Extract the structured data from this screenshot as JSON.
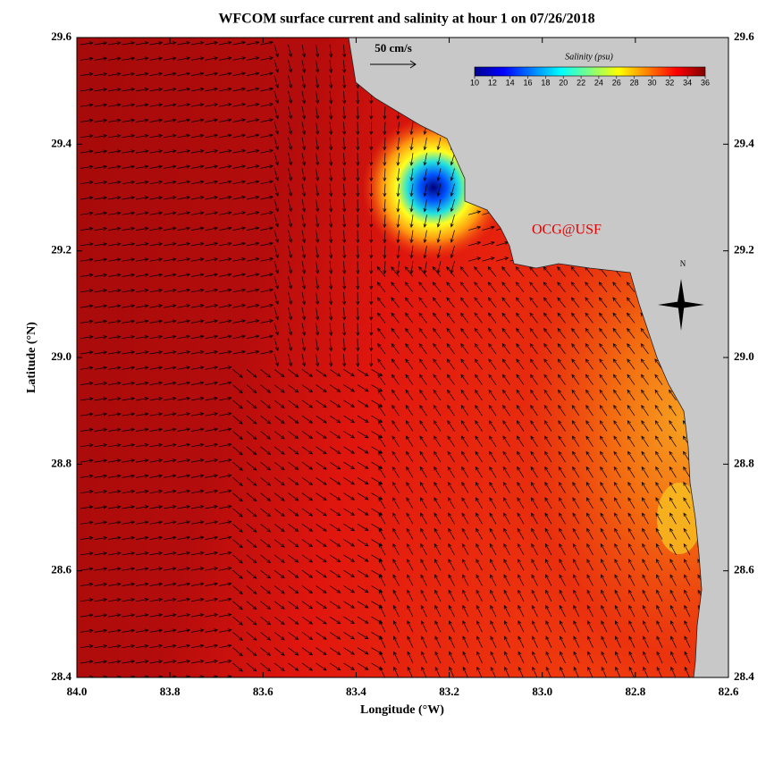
{
  "chart_data": {
    "type": "map",
    "title": "WFCOM surface current and salinity at hour 1 on 07/26/2018",
    "x_label": "Longitude (°W)",
    "y_label": "Latitude (°N)",
    "xlim": [
      84.0,
      82.6
    ],
    "xticks": [
      {
        "value": 84.0,
        "label": "84.0"
      },
      {
        "value": 83.8,
        "label": "83.8"
      },
      {
        "value": 83.6,
        "label": "83.6"
      },
      {
        "value": 83.4,
        "label": "83.4"
      },
      {
        "value": 83.2,
        "label": "83.2"
      },
      {
        "value": 83.0,
        "label": "83.0"
      },
      {
        "value": 82.8,
        "label": "82.8"
      },
      {
        "value": 82.6,
        "label": "82.6"
      }
    ],
    "ylim": [
      28.4,
      29.6
    ],
    "yticks": [
      {
        "value": 28.4,
        "label": "28.4"
      },
      {
        "value": 28.6,
        "label": "28.6"
      },
      {
        "value": 28.8,
        "label": "28.8"
      },
      {
        "value": 29.0,
        "label": "29.0"
      },
      {
        "value": 29.2,
        "label": "29.2"
      },
      {
        "value": 29.4,
        "label": "29.4"
      },
      {
        "value": 29.6,
        "label": "29.6"
      }
    ],
    "scale_arrow_label": "50 cm/s",
    "annotation": "OCG@USF",
    "north_label": "N",
    "colorbar": {
      "title": "Salinity (psu)",
      "lim": [
        10,
        36
      ],
      "ticks": [
        10,
        12,
        14,
        16,
        18,
        20,
        22,
        24,
        26,
        28,
        30,
        32,
        34,
        36
      ],
      "colors": [
        "#00008f",
        "#0000ff",
        "#0080ff",
        "#00ffff",
        "#80ff80",
        "#ffff00",
        "#ff8000",
        "#ff0000",
        "#800000"
      ]
    }
  }
}
